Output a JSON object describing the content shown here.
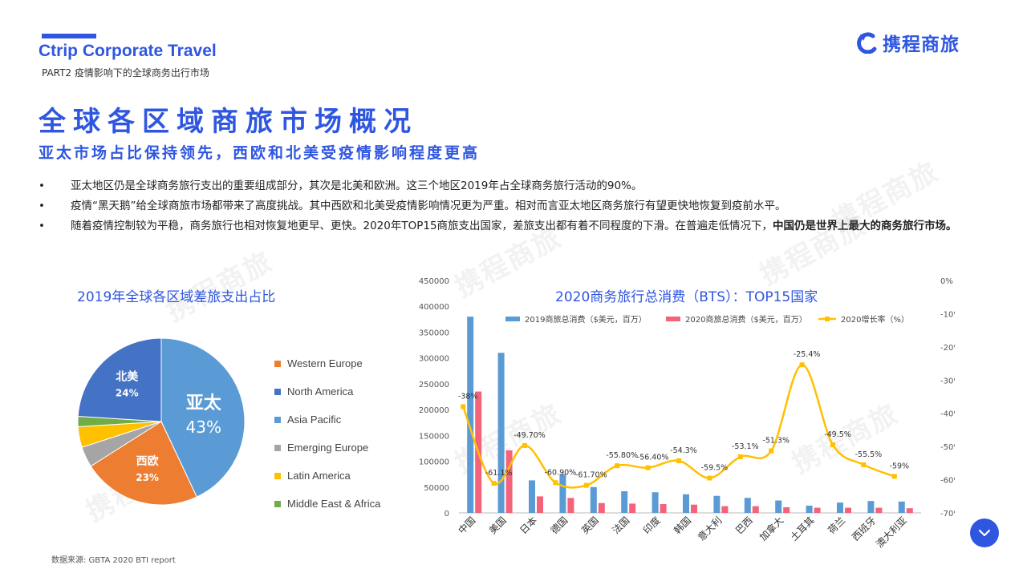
{
  "header": {
    "brand": "Ctrip Corporate Travel",
    "part": "PART2 疫情影响下的全球商务出行市场",
    "logo_text": "携程商旅"
  },
  "title": "全球各区域商旅市场概况",
  "subtitle": "亚太市场占比保持领先，西欧和北美受疫情影响程度更高",
  "bullets": [
    {
      "dot": "•",
      "text": "亚太地区仍是全球商务旅行支出的重要组成部分，其次是北美和欧洲。这三个地区2019年占全球商务旅行活动的90%。",
      "bold": ""
    },
    {
      "dot": "•",
      "text": "疫情“黑天鹅”给全球商旅市场都带来了高度挑战。其中西欧和北美受疫情影响情况更为严重。相对而言亚太地区商务旅行有望更快地恢复到疫前水平。",
      "bold": ""
    },
    {
      "dot": "•",
      "text": "随着疫情控制较为平稳，商务旅行也相对恢复地更早、更快。2020年TOP15商旅支出国家，差旅支出都有着不同程度的下滑。在普遍走低情况下，",
      "bold": "中国仍是世界上最大的商务旅行市场。"
    }
  ],
  "source": "数据来源:    GBTA 2020 BTI report",
  "watermark": "携程商旅",
  "chart_data": [
    {
      "type": "pie",
      "title": "2019年全球各区域差旅支出占比",
      "slices": [
        {
          "name": "Asia Pacific",
          "label": "亚太",
          "value": 43,
          "value_label": "43%",
          "color": "#5b9bd5"
        },
        {
          "name": "Western Europe",
          "label": "西欧",
          "value": 23,
          "value_label": "23%",
          "color": "#ed7d31"
        },
        {
          "name": "Emerging Europe",
          "label": "",
          "value": 4,
          "value_label": "",
          "color": "#a5a5a5"
        },
        {
          "name": "Latin America",
          "label": "",
          "value": 4,
          "value_label": "",
          "color": "#ffc000"
        },
        {
          "name": "Middle East & Africa",
          "label": "",
          "value": 2,
          "value_label": "",
          "color": "#70ad47"
        },
        {
          "name": "North America",
          "label": "北美",
          "value": 24,
          "value_label": "24%",
          "color": "#4472c4"
        }
      ],
      "legend_order": [
        "Western Europe",
        "North America",
        "Asia Pacific",
        "Emerging Europe",
        "Latin America",
        "Middle East & Africa"
      ],
      "legend_position": "right"
    },
    {
      "type": "bar",
      "title": "2020商务旅行总消费（BTS）：TOP15国家",
      "categories": [
        "中国",
        "美国",
        "日本",
        "德国",
        "英国",
        "法国",
        "印度",
        "韩国",
        "意大利",
        "巴西",
        "加拿大",
        "土耳其",
        "荷兰",
        "西班牙",
        "澳大利亚"
      ],
      "series": [
        {
          "name": "2019商旅总消费（$美元，百万）",
          "kind": "bar",
          "color": "#5b9bd5",
          "values": [
            380000,
            310000,
            63000,
            75000,
            50000,
            42000,
            40000,
            36000,
            33000,
            29000,
            24000,
            14000,
            20000,
            23000,
            22000
          ]
        },
        {
          "name": "2020商旅总消费（$美元，百万）",
          "kind": "bar",
          "color": "#f4637a",
          "values": [
            235000,
            121000,
            32000,
            29000,
            19000,
            18000,
            17000,
            16000,
            13000,
            13000,
            11000,
            10000,
            10000,
            10000,
            9000
          ]
        },
        {
          "name": "2020增长率（%）",
          "kind": "line",
          "axis": "right",
          "color": "#ffc000",
          "values": [
            -38,
            -61.1,
            -49.7,
            -60.9,
            -61.7,
            -55.8,
            -56.4,
            -54.3,
            -59.5,
            -53.1,
            -51.3,
            -25.4,
            -49.5,
            -55.5,
            -59
          ],
          "labels": [
            "-38%",
            "-61.1%",
            "-49.70%",
            "-60.90%",
            "-61.70%",
            "-55.80%",
            "-56.40%",
            "-54.3%",
            "-59.5%",
            "-53.1%",
            "-51.3%",
            "-25.4%",
            "-49.5%",
            "-55.5%",
            "-59%"
          ]
        }
      ],
      "ylim": [
        0,
        450000
      ],
      "y_ticks": [
        "0",
        "50000",
        "100000",
        "150000",
        "200000",
        "250000",
        "300000",
        "350000",
        "400000",
        "450000"
      ],
      "y2lim": [
        -70,
        0
      ],
      "y2_ticks": [
        "-70%",
        "-60%",
        "-50%",
        "-40%",
        "-30%",
        "-20%",
        "-10%",
        "0%"
      ],
      "legend_position": "top"
    }
  ]
}
